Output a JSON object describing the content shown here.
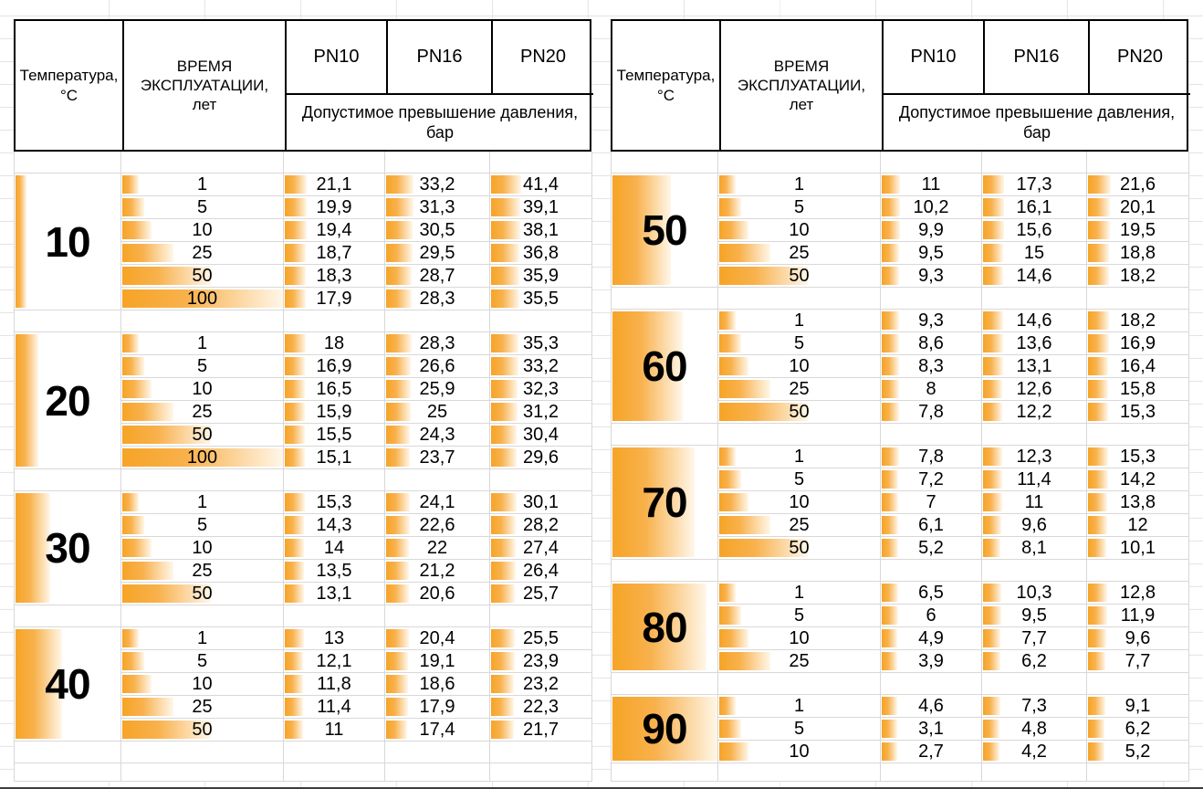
{
  "colors": {
    "data_bar_start": "#F6A426",
    "data_bar_end": "#FFF7EA",
    "data_grid_line": "#D8D8D8",
    "sheet_grid_line": "#E4E4E4",
    "header_border": "#000000"
  },
  "header": {
    "temperature_label": "Температура, °C",
    "time_label": "ВРЕМЯ ЭКСПЛУАТАЦИИ, лет",
    "pn_columns": [
      "PN10",
      "PN16",
      "PN20"
    ],
    "pressure_label": "Допустимое превышение давления, бар"
  },
  "tables": [
    {
      "blocks": [
        {
          "temp": "10",
          "rows": [
            [
              "1",
              "21,1",
              "33,2",
              "41,4"
            ],
            [
              "5",
              "19,9",
              "31,3",
              "39,1"
            ],
            [
              "10",
              "19,4",
              "30,5",
              "38,1"
            ],
            [
              "25",
              "18,7",
              "29,5",
              "36,8"
            ],
            [
              "50",
              "18,3",
              "28,7",
              "35,9"
            ],
            [
              "100",
              "17,9",
              "28,3",
              "35,5"
            ]
          ]
        },
        {
          "temp": "20",
          "rows": [
            [
              "1",
              "18",
              "28,3",
              "35,3"
            ],
            [
              "5",
              "16,9",
              "26,6",
              "33,2"
            ],
            [
              "10",
              "16,5",
              "25,9",
              "32,3"
            ],
            [
              "25",
              "15,9",
              "25",
              "31,2"
            ],
            [
              "50",
              "15,5",
              "24,3",
              "30,4"
            ],
            [
              "100",
              "15,1",
              "23,7",
              "29,6"
            ]
          ]
        },
        {
          "temp": "30",
          "rows": [
            [
              "1",
              "15,3",
              "24,1",
              "30,1"
            ],
            [
              "5",
              "14,3",
              "22,6",
              "28,2"
            ],
            [
              "10",
              "14",
              "22",
              "27,4"
            ],
            [
              "25",
              "13,5",
              "21,2",
              "26,4"
            ],
            [
              "50",
              "13,1",
              "20,6",
              "25,7"
            ]
          ]
        },
        {
          "temp": "40",
          "rows": [
            [
              "1",
              "13",
              "20,4",
              "25,5"
            ],
            [
              "5",
              "12,1",
              "19,1",
              "23,9"
            ],
            [
              "10",
              "11,8",
              "18,6",
              "23,2"
            ],
            [
              "25",
              "11,4",
              "17,9",
              "22,3"
            ],
            [
              "50",
              "11",
              "17,4",
              "21,7"
            ]
          ]
        }
      ]
    },
    {
      "blocks": [
        {
          "temp": "50",
          "rows": [
            [
              "1",
              "11",
              "17,3",
              "21,6"
            ],
            [
              "5",
              "10,2",
              "16,1",
              "20,1"
            ],
            [
              "10",
              "9,9",
              "15,6",
              "19,5"
            ],
            [
              "25",
              "9,5",
              "15",
              "18,8"
            ],
            [
              "50",
              "9,3",
              "14,6",
              "18,2"
            ]
          ]
        },
        {
          "temp": "60",
          "rows": [
            [
              "1",
              "9,3",
              "14,6",
              "18,2"
            ],
            [
              "5",
              "8,6",
              "13,6",
              "16,9"
            ],
            [
              "10",
              "8,3",
              "13,1",
              "16,4"
            ],
            [
              "25",
              "8",
              "12,6",
              "15,8"
            ],
            [
              "50",
              "7,8",
              "12,2",
              "15,3"
            ]
          ]
        },
        {
          "temp": "70",
          "rows": [
            [
              "1",
              "7,8",
              "12,3",
              "15,3"
            ],
            [
              "5",
              "7,2",
              "11,4",
              "14,2"
            ],
            [
              "10",
              "7",
              "11",
              "13,8"
            ],
            [
              "25",
              "6,1",
              "9,6",
              "12"
            ],
            [
              "50",
              "5,2",
              "8,1",
              "10,1"
            ]
          ]
        },
        {
          "temp": "80",
          "rows": [
            [
              "1",
              "6,5",
              "10,3",
              "12,8"
            ],
            [
              "5",
              "6",
              "9,5",
              "11,9"
            ],
            [
              "10",
              "4,9",
              "7,7",
              "9,6"
            ],
            [
              "25",
              "3,9",
              "6,2",
              "7,7"
            ]
          ]
        },
        {
          "temp": "90",
          "rows": [
            [
              "1",
              "4,6",
              "7,3",
              "9,1"
            ],
            [
              "5",
              "3,1",
              "4,8",
              "6,2"
            ],
            [
              "10",
              "2,7",
              "4,2",
              "5,2"
            ]
          ]
        }
      ]
    }
  ]
}
